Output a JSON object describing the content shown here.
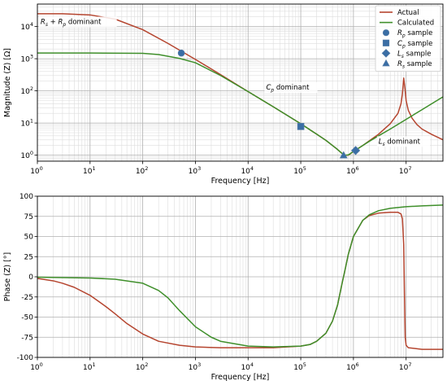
{
  "colors": {
    "actual": "#b5452f",
    "calculated": "#3f8f2b",
    "markers": "#3a6ea5",
    "grid_major": "#b0b0b0",
    "grid_minor": "#dddddd"
  },
  "chart_data": [
    {
      "type": "line",
      "id": "magnitude",
      "xlabel": "Frequency [Hz]",
      "ylabel": "Magnitude (Z) [Ω]",
      "xscale": "log",
      "yscale": "log",
      "xlim": [
        1,
        50000000
      ],
      "ylim": [
        0.65,
        50000
      ],
      "grid": true,
      "x_ticks": [
        {
          "value": 1,
          "base": "10",
          "exp": "0"
        },
        {
          "value": 10,
          "base": "10",
          "exp": "1"
        },
        {
          "value": 100,
          "base": "10",
          "exp": "2"
        },
        {
          "value": 1000,
          "base": "10",
          "exp": "3"
        },
        {
          "value": 10000,
          "base": "10",
          "exp": "4"
        },
        {
          "value": 100000,
          "base": "10",
          "exp": "5"
        },
        {
          "value": 1000000,
          "base": "10",
          "exp": "6"
        },
        {
          "value": 10000000,
          "base": "10",
          "exp": "7"
        }
      ],
      "y_ticks": [
        {
          "value": 1,
          "base": "10",
          "exp": "0"
        },
        {
          "value": 10,
          "base": "10",
          "exp": "1"
        },
        {
          "value": 100,
          "base": "10",
          "exp": "2"
        },
        {
          "value": 1000,
          "base": "10",
          "exp": "3"
        },
        {
          "value": 10000,
          "base": "10",
          "exp": "4"
        }
      ],
      "series": [
        {
          "name": "Actual",
          "color_key": "actual",
          "x": [
            1,
            3,
            10,
            30,
            100,
            300,
            1000,
            3000,
            10000,
            30000,
            100000,
            200000,
            300000,
            400000,
            500000,
            600000,
            700000,
            800000,
            1000000,
            1500000,
            2000000,
            3000000,
            5000000,
            7000000,
            8000000,
            8500000,
            9000000,
            9500000,
            10000000,
            11000000,
            13000000,
            16000000,
            20000000,
            30000000,
            50000000
          ],
          "y": [
            25000,
            25000,
            23000,
            17000,
            8000,
            3000,
            950,
            320,
            95,
            32,
            9.5,
            4.5,
            2.9,
            2.0,
            1.5,
            1.15,
            1.0,
            1.0,
            1.3,
            2.0,
            2.8,
            4.5,
            9.5,
            20,
            40,
            80,
            250,
            120,
            50,
            25,
            14,
            9,
            6.5,
            4.5,
            3.0
          ]
        },
        {
          "name": "Calculated",
          "color_key": "calculated",
          "x": [
            1,
            10,
            100,
            200,
            500,
            1000,
            3000,
            10000,
            30000,
            100000,
            200000,
            300000,
            400000,
            500000,
            600000,
            700000,
            800000,
            1000000,
            1500000,
            2000000,
            3000000,
            5000000,
            10000000,
            20000000,
            50000000
          ],
          "y": [
            1500,
            1500,
            1470,
            1350,
            1020,
            750,
            300,
            95,
            32,
            9.5,
            4.5,
            2.9,
            2.0,
            1.5,
            1.15,
            1.0,
            1.02,
            1.3,
            2.0,
            2.7,
            4.0,
            6.5,
            13,
            26,
            65
          ]
        }
      ],
      "markers": [
        {
          "label": "R_p sample",
          "shape": "circle",
          "x": 540,
          "y": 1500
        },
        {
          "label": "C_p sample",
          "shape": "square",
          "x": 100000,
          "y": 7.8
        },
        {
          "label": "L_s sample",
          "shape": "diamond",
          "x": 1100000,
          "y": 1.4
        },
        {
          "label": "R_s sample",
          "shape": "triangle",
          "x": 650000,
          "y": 0.98
        }
      ],
      "legend": {
        "placement": "top-right",
        "entries": [
          {
            "text": "Actual",
            "kind": "line",
            "color_key": "actual"
          },
          {
            "text": "Calculated",
            "kind": "line",
            "color_key": "calculated"
          },
          {
            "text": "R_p sample",
            "main": "R",
            "sub": "p",
            "rest": " sample",
            "kind": "circle"
          },
          {
            "text": "C_p sample",
            "main": "C",
            "sub": "p",
            "rest": " sample",
            "kind": "square"
          },
          {
            "text": "L_s sample",
            "main": "L",
            "sub": "s",
            "rest": " sample",
            "kind": "diamond"
          },
          {
            "text": "R_s sample",
            "main": "R",
            "sub": "s",
            "rest": " sample",
            "kind": "triangle"
          }
        ]
      },
      "annotations": [
        {
          "text": "R_s + R_p dominant",
          "parts": [
            [
              "R",
              "s",
              " + "
            ],
            [
              "R",
              "p",
              " dominant"
            ]
          ],
          "x": 1.15,
          "y": 12000
        },
        {
          "text": "C_p dominant",
          "parts": [
            [
              "C",
              "p",
              " dominant"
            ]
          ],
          "x": 22000,
          "y": 110
        },
        {
          "text": "L_s dominant",
          "parts": [
            [
              "L",
              "s",
              " dominant"
            ]
          ],
          "x": 3000000,
          "y": 2.3
        }
      ]
    },
    {
      "type": "line",
      "id": "phase",
      "xlabel": "Frequency [Hz]",
      "ylabel": "Phase (Z) [°]",
      "xscale": "log",
      "xlim": [
        1,
        50000000
      ],
      "ylim": [
        -100,
        100
      ],
      "grid": true,
      "x_ticks": [
        {
          "value": 1,
          "base": "10",
          "exp": "0"
        },
        {
          "value": 10,
          "base": "10",
          "exp": "1"
        },
        {
          "value": 100,
          "base": "10",
          "exp": "2"
        },
        {
          "value": 1000,
          "base": "10",
          "exp": "3"
        },
        {
          "value": 10000,
          "base": "10",
          "exp": "4"
        },
        {
          "value": 100000,
          "base": "10",
          "exp": "5"
        },
        {
          "value": 1000000,
          "base": "10",
          "exp": "6"
        },
        {
          "value": 10000000,
          "base": "10",
          "exp": "7"
        }
      ],
      "y_ticks": [
        -100,
        -75,
        -50,
        -25,
        0,
        25,
        50,
        75,
        100
      ],
      "series": [
        {
          "name": "Actual",
          "color_key": "actual",
          "x": [
            1,
            2,
            3,
            5,
            10,
            20,
            30,
            50,
            100,
            200,
            500,
            1000,
            3000,
            10000,
            30000,
            100000,
            150000,
            200000,
            300000,
            400000,
            500000,
            600000,
            700000,
            800000,
            1000000,
            1500000,
            2000000,
            3000000,
            5000000,
            7000000,
            8000000,
            8500000,
            9000000,
            9300000,
            9600000,
            10000000,
            11000000,
            15000000,
            20000000,
            50000000
          ],
          "y": [
            -2,
            -5,
            -8,
            -13,
            -23,
            -37,
            -46,
            -58,
            -71,
            -80,
            -85,
            -87,
            -88,
            -88,
            -88,
            -86,
            -84,
            -80,
            -70,
            -55,
            -35,
            -10,
            10,
            28,
            50,
            70,
            76,
            79,
            80,
            80,
            78,
            72,
            40,
            -20,
            -75,
            -85,
            -88,
            -89,
            -90,
            -90
          ]
        },
        {
          "name": "Calculated",
          "color_key": "calculated",
          "x": [
            1,
            10,
            30,
            100,
            200,
            300,
            500,
            1000,
            2000,
            3000,
            10000,
            30000,
            100000,
            150000,
            200000,
            300000,
            400000,
            500000,
            600000,
            700000,
            800000,
            1000000,
            1500000,
            2000000,
            3000000,
            5000000,
            10000000,
            20000000,
            50000000
          ],
          "y": [
            -0.5,
            -1.5,
            -3,
            -8,
            -17,
            -26,
            -42,
            -62,
            -75,
            -80,
            -86,
            -87,
            -86,
            -84,
            -80,
            -70,
            -55,
            -35,
            -10,
            10,
            28,
            50,
            70,
            77,
            82,
            85,
            87,
            88,
            89
          ]
        }
      ]
    }
  ]
}
